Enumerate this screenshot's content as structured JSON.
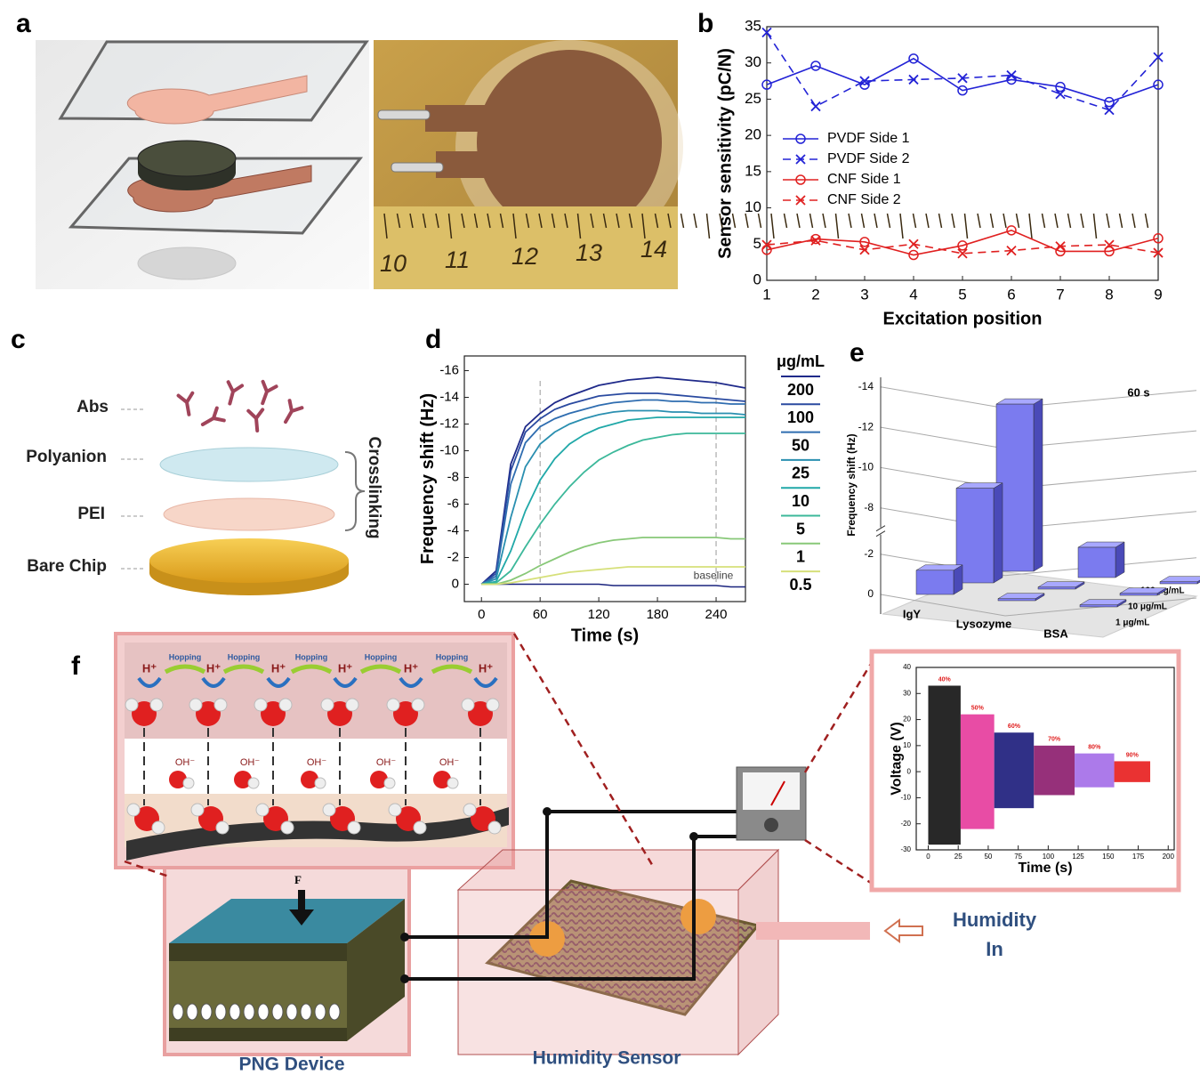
{
  "panel_labels": [
    "a",
    "b",
    "c",
    "d",
    "e",
    "f"
  ],
  "panel_a": {
    "ruler": [
      10,
      11,
      12,
      13,
      14
    ]
  },
  "panel_c": {
    "layers": [
      "Abs",
      "Polyanion",
      "PEI",
      "Bare Chip"
    ],
    "bracket": "Crosslinking"
  },
  "panel_f": {
    "hopping": [
      "Hopping",
      "Hopping",
      "Hopping",
      "Hopping",
      "Hopping"
    ],
    "h_plus": [
      "H⁺",
      "H⁺",
      "H⁺",
      "H⁺",
      "H⁺",
      "H⁺"
    ],
    "oh_minus": [
      "OH⁻",
      "OH⁻",
      "OH⁻",
      "OH⁻",
      "OH⁻"
    ],
    "force": "F",
    "device": "PNG Device",
    "sensor": "Humidity Sensor",
    "humidity_in": [
      "Humidity",
      "In"
    ]
  },
  "chart_data": [
    {
      "type": "line",
      "ylabel": "Sensor sensitivity (pC/N)",
      "xlabel": "Excitation position",
      "x": [
        1,
        2,
        3,
        4,
        5,
        6,
        7,
        8,
        9
      ],
      "xlim": [
        1,
        9
      ],
      "xticks": [
        1,
        2,
        3,
        4,
        5,
        6,
        7,
        8,
        9
      ],
      "ylim": [
        0,
        35
      ],
      "yticks": [
        0,
        5,
        10,
        15,
        20,
        25,
        30,
        35
      ],
      "legend": "center left",
      "series": [
        {
          "name": "PVDF Side 1",
          "color": "#2323d6",
          "dash": false,
          "marker": "o",
          "values": [
            27,
            29.6,
            27,
            30.6,
            26.2,
            27.7,
            26.7,
            24.6,
            27
          ]
        },
        {
          "name": "PVDF Side 2",
          "color": "#2323d6",
          "dash": true,
          "marker": "x",
          "values": [
            34.2,
            24,
            27.5,
            27.7,
            27.9,
            28.3,
            25.7,
            23.5,
            30.8
          ]
        },
        {
          "name": "CNF Side 1",
          "color": "#e02020",
          "dash": false,
          "marker": "o",
          "values": [
            4.2,
            5.7,
            5.3,
            3.5,
            4.8,
            6.9,
            4,
            4,
            5.8
          ]
        },
        {
          "name": "CNF Side 2",
          "color": "#e02020",
          "dash": true,
          "marker": "x",
          "values": [
            4.9,
            5.5,
            4.2,
            5,
            3.7,
            4.1,
            4.7,
            4.9,
            3.8
          ]
        }
      ]
    },
    {
      "type": "line",
      "ylabel": "Frequency shift (Hz)",
      "xlabel": "Time (s)",
      "legend_title": "μg/mL",
      "x": [
        0,
        15,
        30,
        45,
        60,
        75,
        90,
        105,
        120,
        135,
        150,
        165,
        180,
        195,
        210,
        225,
        240,
        255,
        270
      ],
      "xlim": [
        -17.5,
        270
      ],
      "xticks": [
        0,
        60,
        120,
        180,
        240
      ],
      "ylim": [
        1.3,
        -17.1
      ],
      "yticks": [
        -16,
        -14,
        -12,
        -10,
        -8,
        -6,
        -4,
        -2,
        0
      ],
      "legend": "right",
      "vlines": [
        60,
        240
      ],
      "series": [
        {
          "name": "200",
          "color": "#1f2a8a",
          "values": [
            0,
            -1,
            -9,
            -11.8,
            -12.8,
            -13.6,
            -14.1,
            -14.5,
            -14.9,
            -15.1,
            -15.3,
            -15.4,
            -15.5,
            -15.4,
            -15.3,
            -15.2,
            -15.1,
            -14.9,
            -14.7
          ]
        },
        {
          "name": "100",
          "color": "#2a4aa0",
          "values": [
            0,
            -0.8,
            -8.5,
            -11.4,
            -12.4,
            -13.1,
            -13.5,
            -13.8,
            -14.1,
            -14.2,
            -14.3,
            -14.3,
            -14.3,
            -14.2,
            -14.1,
            -14,
            -13.9,
            -13.8,
            -13.7
          ]
        },
        {
          "name": "50",
          "color": "#2f6db0",
          "values": [
            0,
            -0.6,
            -7.5,
            -10.6,
            -11.8,
            -12.4,
            -12.8,
            -13.1,
            -13.4,
            -13.6,
            -13.7,
            -13.8,
            -13.8,
            -13.7,
            -13.7,
            -13.6,
            -13.6,
            -13.5,
            -13.5
          ]
        },
        {
          "name": "25",
          "color": "#2a8fb0",
          "values": [
            0,
            -0.4,
            -5,
            -8.8,
            -10.5,
            -11.4,
            -12,
            -12.4,
            -12.7,
            -12.9,
            -13,
            -13,
            -13,
            -12.9,
            -12.9,
            -12.8,
            -12.8,
            -12.8,
            -12.7
          ]
        },
        {
          "name": "10",
          "color": "#20a8a8",
          "values": [
            0,
            -0.2,
            -2.5,
            -5.5,
            -7.8,
            -9.4,
            -10.5,
            -11.2,
            -11.7,
            -12,
            -12.3,
            -12.4,
            -12.5,
            -12.5,
            -12.5,
            -12.5,
            -12.5,
            -12.5,
            -12.5
          ]
        },
        {
          "name": "5",
          "color": "#3cb89a",
          "values": [
            0,
            -0.1,
            -1,
            -2.8,
            -4.5,
            -6,
            -7.3,
            -8.4,
            -9.3,
            -9.9,
            -10.4,
            -10.8,
            -11,
            -11.2,
            -11.3,
            -11.3,
            -11.3,
            -11.3,
            -11.3
          ]
        },
        {
          "name": "1",
          "color": "#88c878",
          "values": [
            0,
            0,
            -0.3,
            -0.8,
            -1.4,
            -1.9,
            -2.4,
            -2.8,
            -3.1,
            -3.3,
            -3.4,
            -3.5,
            -3.5,
            -3.5,
            -3.5,
            -3.5,
            -3.5,
            -3.4,
            -3.4
          ]
        },
        {
          "name": "0.5",
          "color": "#d6e07a",
          "values": [
            0,
            0,
            -0.1,
            -0.3,
            -0.5,
            -0.7,
            -0.9,
            -1,
            -1.1,
            -1.2,
            -1.3,
            -1.3,
            -1.3,
            -1.3,
            -1.3,
            -1.3,
            -1.3,
            -1.3,
            -1.3
          ]
        }
      ],
      "baseline": {
        "label": "baseline",
        "color": "#1a237e",
        "values": [
          0,
          0,
          0,
          0,
          0,
          0,
          0,
          0,
          0,
          0.1,
          0.1,
          0.1,
          0.1,
          0.1,
          0.1,
          0.1,
          0.1,
          0.2,
          0.2
        ]
      }
    },
    {
      "type": "bar3d",
      "title": "60 s",
      "ylabel": "Frequency shift (Hz)",
      "categories": [
        "IgY",
        "Lysozyme",
        "BSA"
      ],
      "ylim": [
        0,
        -14.3
      ],
      "yticks": [
        -14,
        -12,
        -10,
        -8,
        -2,
        0
      ],
      "ybreak": [
        -2,
        -8
      ],
      "series": [
        {
          "name": "100 μg/mL",
          "color": "#7b7bef",
          "values": [
            -12,
            -1.5,
            -0.1
          ]
        },
        {
          "name": "10 μg/mL",
          "color": "#7b7bef",
          "values": [
            -8.4,
            -0.1,
            -0.1
          ]
        },
        {
          "name": "1 μg/mL",
          "color": "#7b7bef",
          "values": [
            -1.2,
            -0.1,
            -0.1
          ]
        }
      ]
    },
    {
      "type": "range",
      "ylabel": "Voltage (V)",
      "xlabel": "Time (s)",
      "xlim": [
        -10,
        205
      ],
      "xticks": [
        0,
        25,
        50,
        75,
        100,
        125,
        150,
        175,
        200
      ],
      "ylim": [
        -30,
        40
      ],
      "yticks": [
        -30,
        -20,
        -10,
        0,
        10,
        20,
        30,
        40
      ],
      "segments": [
        {
          "label": "40%",
          "start": 0,
          "end": 27,
          "max": 33,
          "min": -28,
          "color": "#111111"
        },
        {
          "label": "50%",
          "start": 27,
          "end": 55,
          "max": 22,
          "min": -22,
          "color": "#e6399b"
        },
        {
          "label": "60%",
          "start": 55,
          "end": 88,
          "max": 15,
          "min": -14,
          "color": "#1a1a7a"
        },
        {
          "label": "70%",
          "start": 88,
          "end": 122,
          "max": 10,
          "min": -9,
          "color": "#8b1a6b"
        },
        {
          "label": "80%",
          "start": 122,
          "end": 155,
          "max": 7,
          "min": -6,
          "color": "#a36be8"
        },
        {
          "label": "90%",
          "start": 155,
          "end": 185,
          "max": 4,
          "min": -4,
          "color": "#e81c1c"
        }
      ]
    }
  ]
}
